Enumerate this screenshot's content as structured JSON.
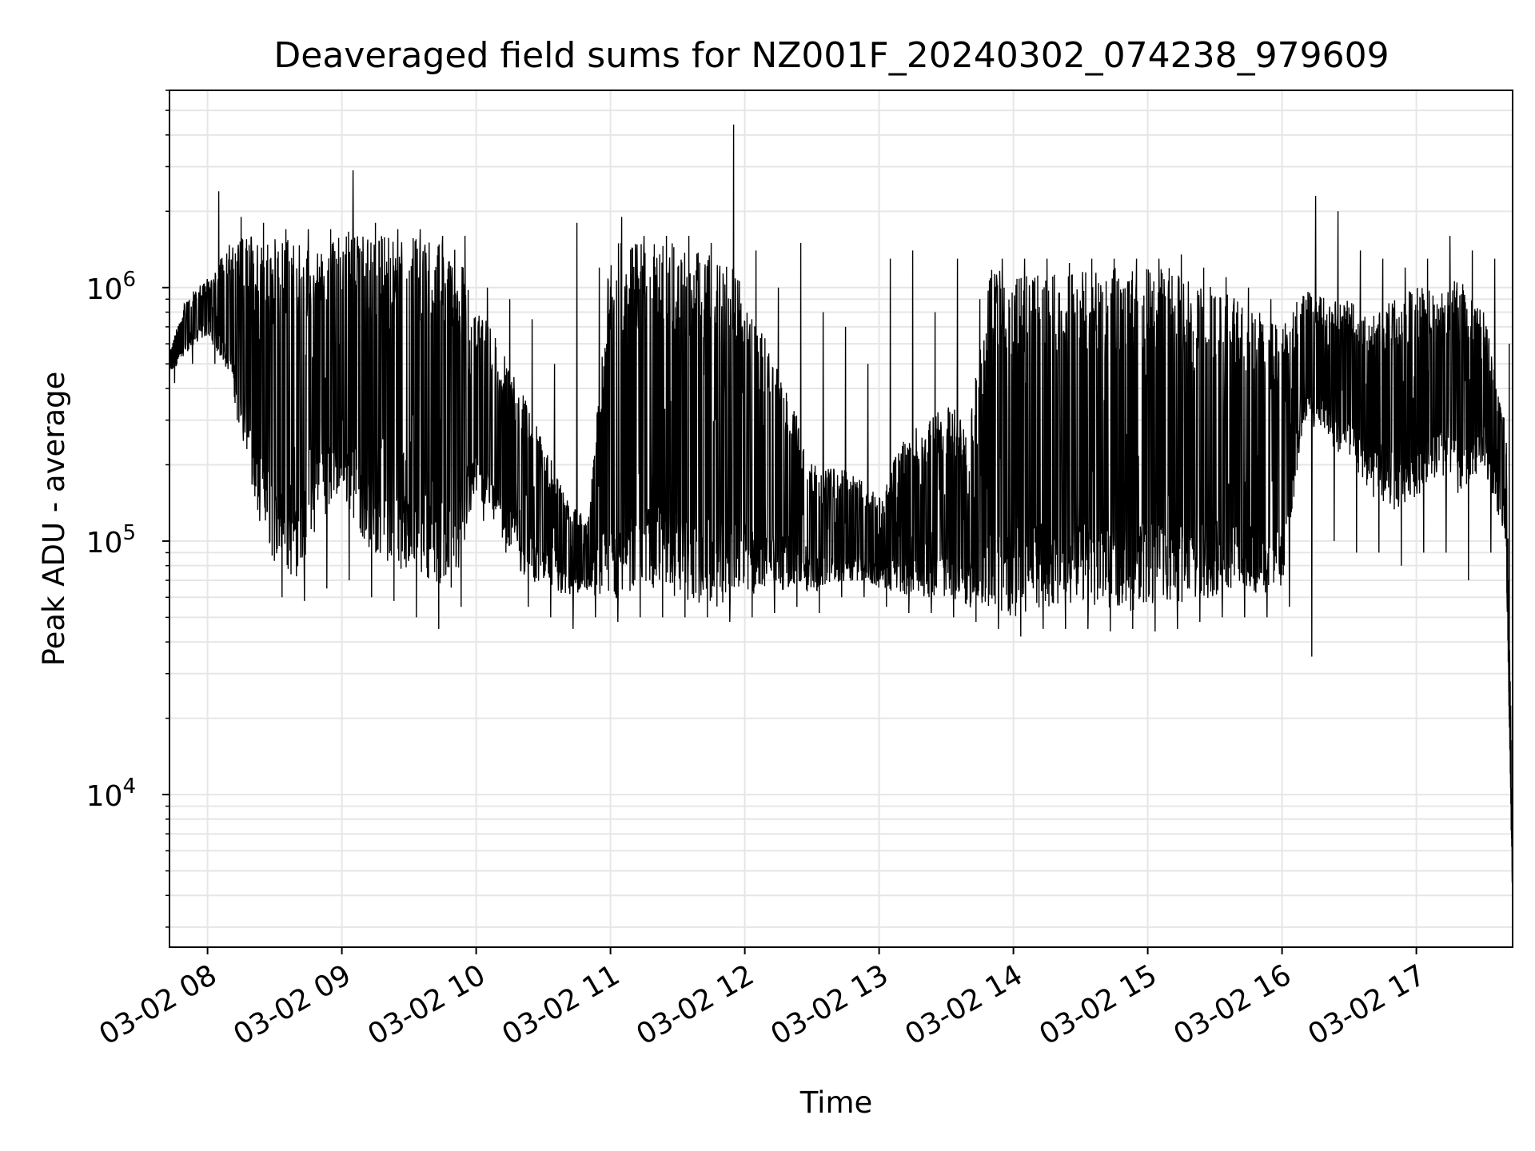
{
  "chart_data": {
    "type": "line",
    "title": "Deaveraged field sums for NZ001F_20240302_074238_979609",
    "xlabel": "Time",
    "ylabel": "Peak ADU - average",
    "yscale": "log",
    "ylim": [
      2500,
      6000000
    ],
    "xlim": [
      "2024-03-02 07:43",
      "2024-03-02 17:43"
    ],
    "x_tick_labels": [
      "03-02 08",
      "03-02 09",
      "03-02 10",
      "03-02 11",
      "03-02 12",
      "03-02 13",
      "03-02 14",
      "03-02 15",
      "03-02 16",
      "03-02 17"
    ],
    "y_ticks": [
      {
        "value": 10000,
        "base": "10",
        "exp": "4"
      },
      {
        "value": 100000,
        "base": "10",
        "exp": "5"
      },
      {
        "value": 1000000,
        "base": "10",
        "exp": "6"
      }
    ],
    "grid": true,
    "line_color": "#000000",
    "grid_color": "#e6e6e6",
    "series": [
      {
        "x": [
          "2024-03-02 07:43",
          "2024-03-02 07:50",
          "2024-03-02 08:00",
          "2024-03-02 08:10",
          "2024-03-02 08:20",
          "2024-03-02 08:30",
          "2024-03-02 08:40",
          "2024-03-02 08:50",
          "2024-03-02 09:00",
          "2024-03-02 09:10",
          "2024-03-02 09:20",
          "2024-03-02 09:30",
          "2024-03-02 09:40",
          "2024-03-02 09:50",
          "2024-03-02 10:00",
          "2024-03-02 10:10",
          "2024-03-02 10:20",
          "2024-03-02 10:30",
          "2024-03-02 10:40",
          "2024-03-02 10:50",
          "2024-03-02 11:00",
          "2024-03-02 11:10",
          "2024-03-02 11:20",
          "2024-03-02 11:30",
          "2024-03-02 11:40",
          "2024-03-02 11:50",
          "2024-03-02 12:00",
          "2024-03-02 12:10",
          "2024-03-02 12:20",
          "2024-03-02 12:30",
          "2024-03-02 12:40",
          "2024-03-02 12:50",
          "2024-03-02 13:00",
          "2024-03-02 13:10",
          "2024-03-02 13:20",
          "2024-03-02 13:30",
          "2024-03-02 13:40",
          "2024-03-02 13:50",
          "2024-03-02 14:00",
          "2024-03-02 14:10",
          "2024-03-02 14:20",
          "2024-03-02 14:30",
          "2024-03-02 14:40",
          "2024-03-02 14:50",
          "2024-03-02 15:00",
          "2024-03-02 15:10",
          "2024-03-02 15:20",
          "2024-03-02 15:30",
          "2024-03-02 15:40",
          "2024-03-02 15:50",
          "2024-03-02 16:00",
          "2024-03-02 16:10",
          "2024-03-02 16:20",
          "2024-03-02 16:30",
          "2024-03-02 16:40",
          "2024-03-02 16:50",
          "2024-03-02 17:00",
          "2024-03-02 17:10",
          "2024-03-02 17:20",
          "2024-03-02 17:30",
          "2024-03-02 17:40",
          "2024-03-02 17:43"
        ],
        "low": [
          450000,
          550000,
          650000,
          450000,
          150000,
          80000,
          70000,
          120000,
          150000,
          100000,
          70000,
          80000,
          70000,
          60000,
          150000,
          110000,
          75000,
          65000,
          60000,
          62000,
          58000,
          60000,
          65000,
          58000,
          55000,
          55000,
          58000,
          62000,
          65000,
          62000,
          68000,
          70000,
          65000,
          62000,
          60000,
          60000,
          55000,
          50000,
          50000,
          55000,
          52000,
          55000,
          55000,
          52000,
          55000,
          55000,
          55000,
          60000,
          60000,
          60000,
          65000,
          300000,
          250000,
          200000,
          150000,
          130000,
          150000,
          180000,
          150000,
          200000,
          100000,
          3500
        ],
        "high": [
          550000,
          900000,
          1100000,
          1500000,
          1600000,
          1600000,
          1500000,
          1400000,
          1700000,
          1600000,
          1600000,
          1600000,
          1500000,
          1500000,
          900000,
          600000,
          400000,
          250000,
          150000,
          120000,
          1500000,
          1500000,
          1500000,
          1500000,
          1400000,
          1400000,
          1000000,
          600000,
          400000,
          200000,
          200000,
          180000,
          150000,
          250000,
          300000,
          350000,
          300000,
          1200000,
          1200000,
          1200000,
          1150000,
          1200000,
          1200000,
          1200000,
          1200000,
          1200000,
          1100000,
          1000000,
          900000,
          800000,
          700000,
          1000000,
          900000,
          900000,
          800000,
          900000,
          1000000,
          1000000,
          1100000,
          800000,
          300000,
          8000
        ],
        "spike_max": [
          600000,
          900000,
          2400000,
          1900000,
          1800000,
          1700000,
          1700000,
          1700000,
          2900000,
          1800000,
          1700000,
          1700000,
          1600000,
          1600000,
          1000000,
          900000,
          750000,
          500000,
          1800000,
          1200000,
          1900000,
          1600000,
          1600000,
          1600000,
          1500000,
          4400000,
          1400000,
          1000000,
          1500000,
          800000,
          700000,
          500000,
          1300000,
          1400000,
          800000,
          1300000,
          900000,
          1300000,
          1300000,
          1300000,
          1250000,
          1300000,
          1300000,
          1300000,
          1300000,
          1350000,
          1200000,
          1100000,
          1000000,
          900000,
          800000,
          2300000,
          2000000,
          1400000,
          1300000,
          1200000,
          1300000,
          1600000,
          1400000,
          1300000,
          600000,
          50000
        ],
        "spike_min": [
          420000,
          500000,
          500000,
          300000,
          120000,
          60000,
          58000,
          65000,
          70000,
          60000,
          58000,
          50000,
          45000,
          55000,
          120000,
          90000,
          55000,
          50000,
          45000,
          50000,
          48000,
          50000,
          50000,
          50000,
          50000,
          48000,
          50000,
          52000,
          55000,
          52000,
          60000,
          60000,
          55000,
          52000,
          52000,
          50000,
          48000,
          45000,
          42000,
          45000,
          45000,
          45000,
          44000,
          45000,
          44000,
          45000,
          48000,
          50000,
          50000,
          50000,
          55000,
          35000,
          100000,
          90000,
          90000,
          80000,
          90000,
          90000,
          70000,
          90000,
          70000,
          3300
        ]
      }
    ]
  }
}
